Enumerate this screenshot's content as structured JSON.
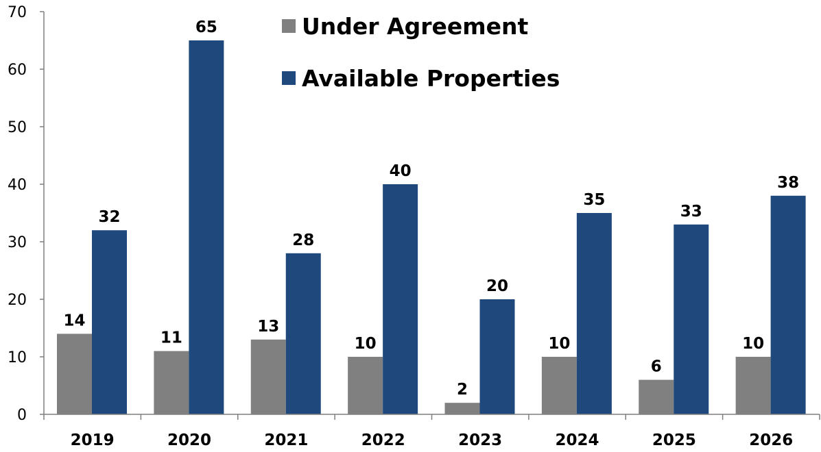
{
  "chart_data": {
    "type": "bar",
    "categories": [
      "2019",
      "2020",
      "2021",
      "2022",
      "2023",
      "2024",
      "2025",
      "2026"
    ],
    "series": [
      {
        "name": "Under Agreement",
        "color": "#808080",
        "values": [
          14,
          11,
          13,
          10,
          2,
          10,
          6,
          10
        ]
      },
      {
        "name": "Available Properties",
        "color": "#1f497d",
        "values": [
          32,
          65,
          28,
          40,
          20,
          35,
          33,
          38
        ]
      }
    ],
    "yticks": [
      0,
      10,
      20,
      30,
      40,
      50,
      60,
      70
    ],
    "ylim": [
      0,
      70
    ],
    "grid": false,
    "legend_position": "top-center",
    "data_labels": true
  }
}
